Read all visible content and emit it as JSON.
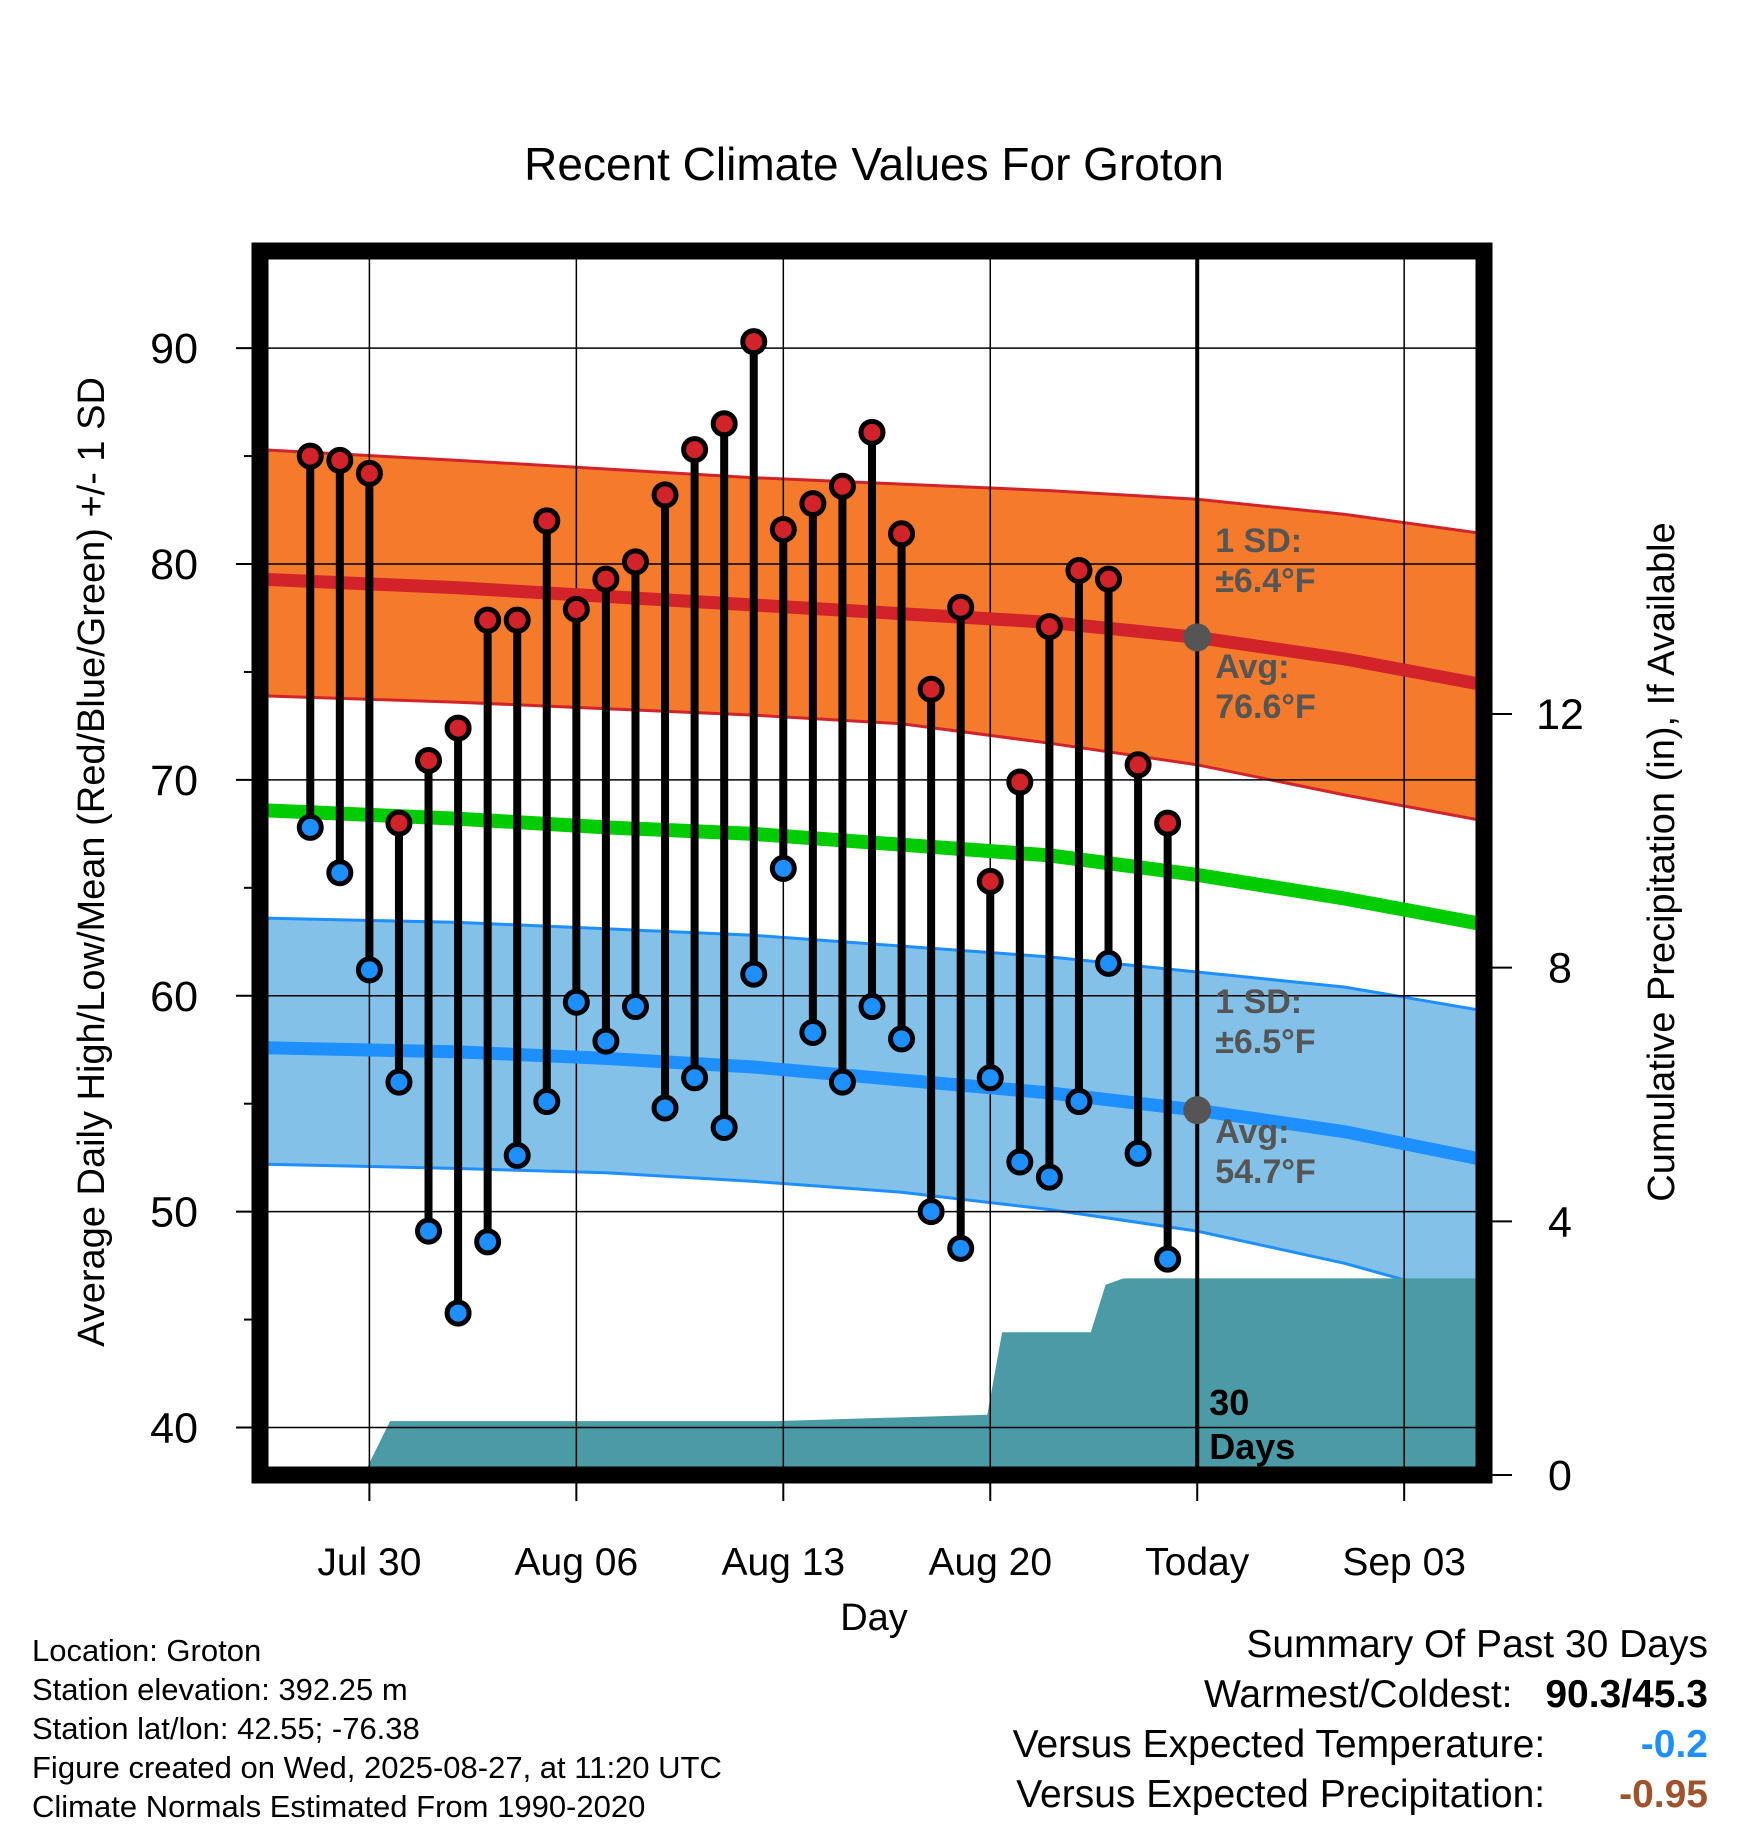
{
  "chart_data": {
    "type": "line",
    "title": "Recent Climate Values For Groton",
    "xlabel": "Day",
    "ylabel_left": "Average Daily High/Low/Mean (Red/Blue/Green) +/- 1 SD",
    "ylabel_right": "Cumulative Precipitation (in), If Available",
    "ylim": [
      37.8,
      94.5
    ],
    "y2lim": [
      0,
      19.3
    ],
    "yticks": [
      "90",
      "80",
      "70",
      "60",
      "50",
      "40"
    ],
    "y2ticks": [
      "12",
      "8",
      "4",
      "0"
    ],
    "x_tick_labels": [
      "Jul 30",
      "Aug 06",
      "Aug 13",
      "Aug 20",
      "Today",
      "Sep 03"
    ],
    "x_day_range": [
      -31.7,
      9.7
    ],
    "today_label": [
      "30",
      "Days"
    ],
    "high_sd_label": [
      "1 SD:",
      "±6.4°F"
    ],
    "high_avg_label": [
      "Avg:",
      "76.6°F"
    ],
    "low_sd_label": [
      "1 SD:",
      "±6.5°F"
    ],
    "low_avg_label": [
      "Avg:",
      "54.7°F"
    ],
    "normals": {
      "day": [
        -31.7,
        -25,
        -20,
        -15,
        -10,
        -5,
        0,
        5,
        9.7
      ],
      "high_avg": [
        79.3,
        78.9,
        78.5,
        78.1,
        77.7,
        77.3,
        76.6,
        75.6,
        74.4
      ],
      "high_upper": [
        85.3,
        84.8,
        84.4,
        84.0,
        83.7,
        83.4,
        83.0,
        82.3,
        81.4
      ],
      "high_lower": [
        73.9,
        73.6,
        73.3,
        73.0,
        72.6,
        71.7,
        70.7,
        69.3,
        68.1
      ],
      "mean": [
        68.6,
        68.2,
        67.8,
        67.5,
        67.0,
        66.5,
        65.6,
        64.5,
        63.3
      ],
      "low_avg": [
        57.6,
        57.4,
        57.1,
        56.7,
        56.1,
        55.5,
        54.7,
        53.7,
        52.4
      ],
      "low_upper": [
        63.6,
        63.4,
        63.1,
        62.8,
        62.3,
        61.8,
        61.1,
        60.4,
        59.3
      ],
      "low_lower": [
        52.2,
        52.0,
        51.8,
        51.4,
        50.9,
        50.1,
        49.1,
        47.6,
        45.8
      ],
      "high_color": "#f47a2c",
      "high_line_color": "#d2232a",
      "mean_color": "#00cc00",
      "low_color": "#83c1e8",
      "low_line_color": "#1e8fff"
    },
    "observed": {
      "day": [
        -30,
        -29,
        -28,
        -27,
        -26,
        -25,
        -24,
        -23,
        -22,
        -21,
        -20,
        -19,
        -18,
        -17,
        -16,
        -15,
        -14,
        -13,
        -12,
        -11,
        -10,
        -9,
        -8,
        -7,
        -6,
        -5,
        -4,
        -3,
        -2,
        -1
      ],
      "high": [
        85.0,
        84.8,
        84.2,
        68.0,
        70.9,
        72.4,
        77.4,
        77.4,
        82.0,
        77.9,
        79.3,
        80.1,
        83.2,
        85.3,
        86.5,
        90.3,
        81.6,
        82.8,
        83.6,
        86.1,
        81.4,
        74.2,
        78.0,
        65.3,
        69.9,
        77.1,
        79.7,
        79.3,
        70.7,
        68.0
      ],
      "low": [
        67.8,
        65.7,
        61.2,
        56.0,
        49.1,
        45.3,
        48.6,
        52.6,
        55.1,
        59.7,
        57.9,
        59.5,
        54.8,
        56.2,
        53.9,
        61.0,
        65.9,
        58.3,
        56.0,
        59.5,
        58.0,
        50.0,
        48.3,
        56.2,
        52.3,
        51.6,
        55.1,
        61.5,
        52.7,
        47.8
      ],
      "high_color": "#d2232a",
      "low_color": "#1e8fff"
    },
    "precipitation": {
      "day": [
        -31.7,
        -28.2,
        -27.3,
        -14.3,
        -7.1,
        -6.6,
        -3.6,
        -3.1,
        -2.5,
        9.7
      ],
      "cumulative_in": [
        0,
        0,
        0.85,
        0.85,
        0.95,
        2.25,
        2.25,
        3.0,
        3.1,
        3.1
      ],
      "color": "#4a9ba5"
    }
  },
  "footer": {
    "location": "Location: Groton",
    "elevation": "Station elevation: 392.25 m",
    "latlon": "Station lat/lon: 42.55; -76.38",
    "created": "Figure created on Wed, 2025-08-27, at 11:20 UTC",
    "normals": "Climate Normals Estimated From 1990-2020"
  },
  "summary": {
    "title": "Summary Of Past 30 Days",
    "warm_cold_label": "Warmest/Coldest:",
    "warm_cold_value": "90.3/45.3",
    "temp_label": "Versus Expected Temperature:",
    "temp_value": "-0.2",
    "temp_color": "#1e8fff",
    "precip_label": "Versus Expected Precipitation:",
    "precip_value": "-0.95",
    "precip_color": "#a0522d"
  }
}
